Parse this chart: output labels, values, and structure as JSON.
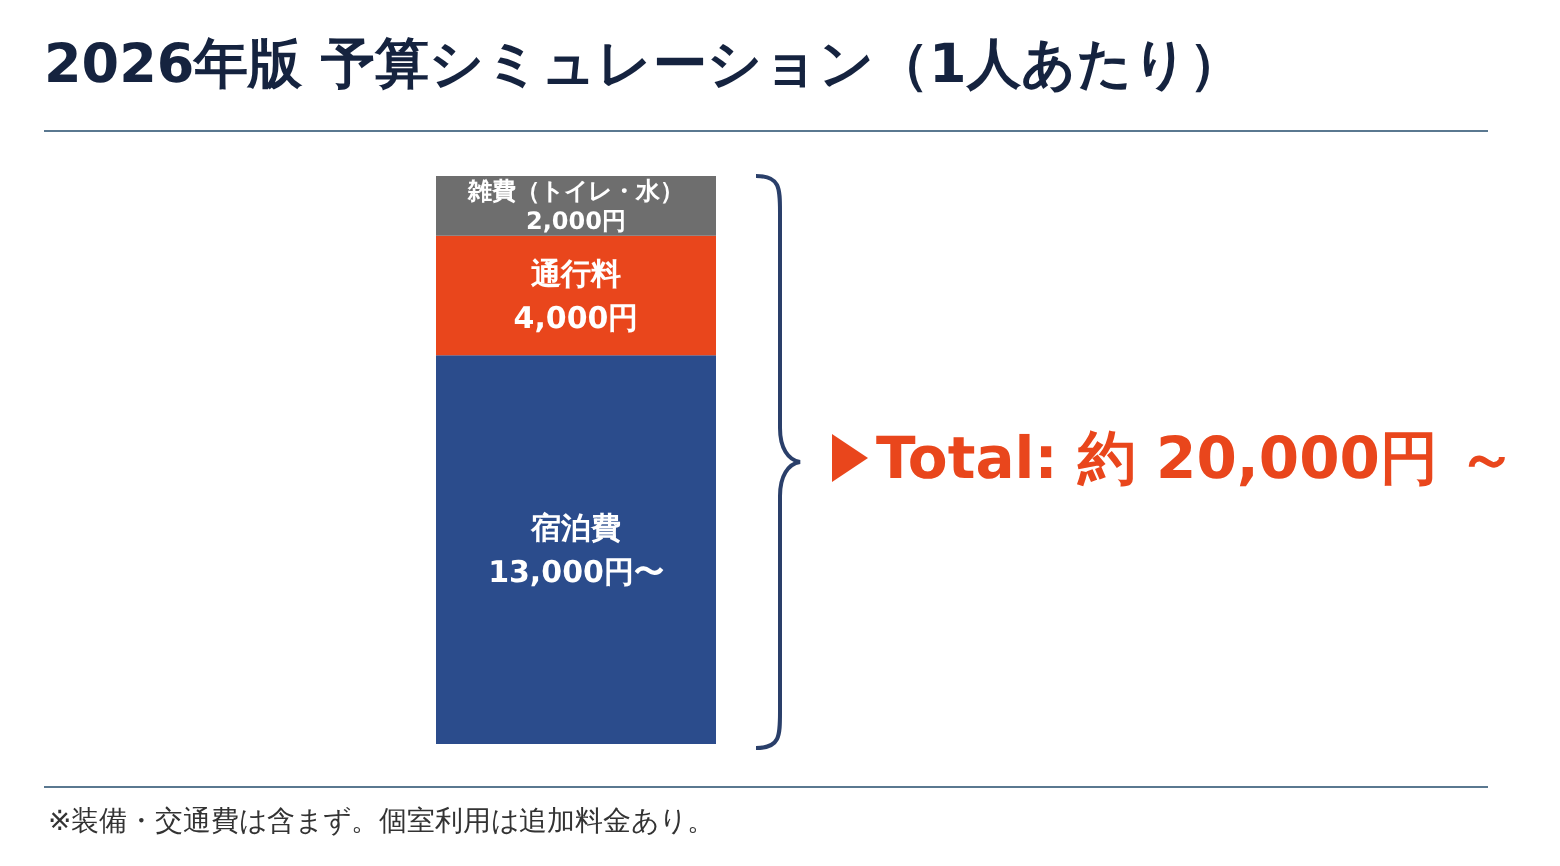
{
  "chart_data": {
    "type": "bar",
    "stacked": true,
    "title": "2026年版 予算シミュレーション（1人あたり）",
    "categories": [
      null
    ],
    "series": [
      {
        "name": "宿泊費",
        "color": "#2b4c8c",
        "values": [
          13000
        ],
        "value_labels": [
          "13,000円〜"
        ]
      },
      {
        "name": "通行料",
        "color": "#e9461c",
        "values": [
          4000
        ],
        "value_labels": [
          "4,000円"
        ]
      },
      {
        "name": "雑費（トイレ・水）",
        "color": "#6e6e6e",
        "values": [
          2000
        ],
        "value_labels": [
          "2,000円"
        ]
      }
    ],
    "totals": [
      "Total: 約 20,000円 ～"
    ],
    "annotations": [
      "※装備・交通費は含まず。個室利用は追加料金あり。"
    ]
  }
}
